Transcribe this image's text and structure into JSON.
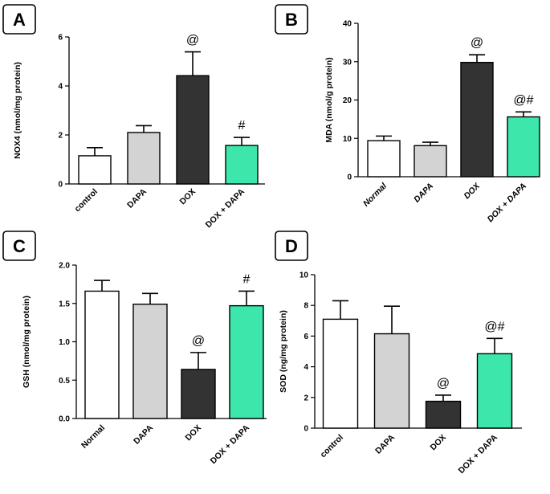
{
  "chart_data": [
    {
      "panel": "A",
      "type": "bar",
      "categories": [
        "control",
        "DAPA",
        "DOX",
        "DOX + DAPA"
      ],
      "values": [
        1.15,
        2.1,
        4.42,
        1.57
      ],
      "errors": [
        0.33,
        0.28,
        0.97,
        0.33
      ],
      "annotations": [
        "",
        "",
        "@",
        "#"
      ],
      "colors": [
        "#ffffff",
        "#d3d3d3",
        "#333333",
        "#3de6aa"
      ],
      "ylabel": "NOX4 (nmol/mg protein)",
      "ylim": [
        0,
        6
      ],
      "yticks": [
        0,
        2,
        4,
        6
      ],
      "ytick_labels": [
        "0",
        "2",
        "4",
        "6"
      ],
      "italic_labels": false
    },
    {
      "panel": "B",
      "type": "bar",
      "categories": [
        "Normal",
        "DAPA",
        "DOX",
        "DOX + DAPA"
      ],
      "values": [
        9.4,
        8.1,
        29.8,
        15.6
      ],
      "errors": [
        1.2,
        0.9,
        2.0,
        1.3
      ],
      "annotations": [
        "",
        "",
        "@",
        "@#"
      ],
      "colors": [
        "#ffffff",
        "#d3d3d3",
        "#333333",
        "#3de6aa"
      ],
      "ylabel": "MDA (nmol/g protein)",
      "ylim": [
        0,
        40
      ],
      "yticks": [
        0,
        10,
        20,
        30,
        40
      ],
      "ytick_labels": [
        "0",
        "10",
        "20",
        "30",
        "40"
      ],
      "italic_labels": true
    },
    {
      "panel": "C",
      "type": "bar",
      "categories": [
        "Normal",
        "DAPA",
        "DOX",
        "DOX + DAPA"
      ],
      "values": [
        1.66,
        1.49,
        0.64,
        1.47
      ],
      "errors": [
        0.14,
        0.14,
        0.22,
        0.19
      ],
      "annotations": [
        "",
        "",
        "@",
        "#"
      ],
      "colors": [
        "#ffffff",
        "#d3d3d3",
        "#333333",
        "#3de6aa"
      ],
      "ylabel": "GSH (nmol/mg protein)",
      "ylim": [
        0,
        2
      ],
      "yticks": [
        0,
        0.5,
        1,
        1.5,
        2
      ],
      "ytick_labels": [
        "0.0",
        "0.5",
        "1.0",
        "1.5",
        "2.0"
      ],
      "italic_labels": false
    },
    {
      "panel": "D",
      "type": "bar",
      "categories": [
        "control",
        "DAPA",
        "DOX",
        "DOX + DAPA"
      ],
      "values": [
        7.1,
        6.15,
        1.75,
        4.85
      ],
      "errors": [
        1.2,
        1.8,
        0.4,
        1.0
      ],
      "annotations": [
        "",
        "",
        "@",
        "@#"
      ],
      "colors": [
        "#ffffff",
        "#d3d3d3",
        "#333333",
        "#3de6aa"
      ],
      "ylabel": "SOD (ng/mg protein)",
      "ylim": [
        0,
        10
      ],
      "yticks": [
        0,
        2,
        4,
        6,
        8,
        10
      ],
      "ytick_labels": [
        "0",
        "2",
        "4",
        "6",
        "8",
        "10"
      ],
      "italic_labels": false
    }
  ]
}
